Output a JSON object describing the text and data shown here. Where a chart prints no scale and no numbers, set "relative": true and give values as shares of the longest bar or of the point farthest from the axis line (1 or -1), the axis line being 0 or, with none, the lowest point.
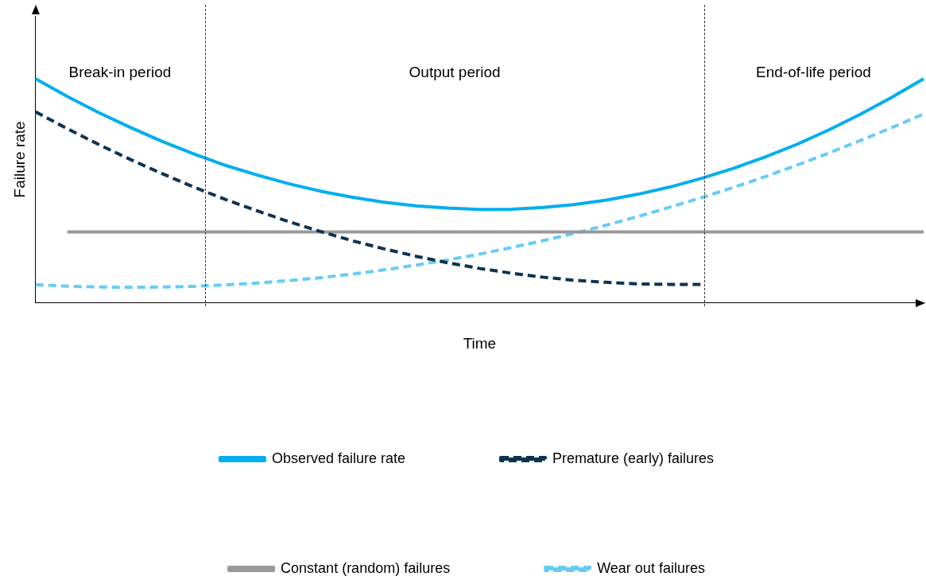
{
  "chart_data": {
    "type": "line",
    "relative": true,
    "xlabel": "Time",
    "ylabel": "Failure rate",
    "legend": "bottom",
    "grid": false,
    "marker": "none",
    "categories": [
      null,
      null,
      null,
      null,
      null,
      null,
      null,
      null,
      null,
      null,
      null,
      null,
      null,
      null,
      null,
      null,
      null,
      null,
      null,
      null,
      null,
      null,
      null,
      null,
      null,
      null,
      null,
      null,
      null
    ],
    "series": [
      {
        "name": "Observed failure rate",
        "color": "#00aeef",
        "line_style": "solid",
        "values": [
          1.0,
          0.921,
          0.848,
          0.782,
          0.72,
          0.664,
          0.613,
          0.57,
          0.531,
          0.498,
          0.471,
          0.449,
          0.433,
          0.423,
          0.417,
          0.418,
          0.426,
          0.439,
          0.459,
          0.485,
          0.517,
          0.556,
          0.6,
          0.651,
          0.707,
          0.771,
          0.841,
          0.917,
          1.0
        ]
      },
      {
        "name": "Premature (early) failures",
        "color": "#0d3353",
        "line_style": "dashed",
        "values": [
          0.852,
          0.777,
          0.706,
          0.639,
          0.576,
          0.516,
          0.461,
          0.41,
          0.362,
          0.318,
          0.277,
          0.241,
          0.208,
          0.179,
          0.154,
          0.133,
          0.115,
          0.101,
          0.092,
          0.085,
          0.083,
          0.083,
          null,
          null,
          null,
          null,
          null,
          null,
          null
        ]
      },
      {
        "name": "Constant (random) failures",
        "color": "#999999",
        "line_style": "solid",
        "values": [
          null,
          0.317,
          0.317,
          0.317,
          0.317,
          0.317,
          0.317,
          0.317,
          0.317,
          0.317,
          0.317,
          0.317,
          0.317,
          0.317,
          0.317,
          0.317,
          0.317,
          0.317,
          0.317,
          0.317,
          0.317,
          0.317,
          0.317,
          0.317,
          0.317,
          0.317,
          0.317,
          0.317,
          0.317
        ]
      },
      {
        "name": "Wear out failures",
        "color": "#66ccf5",
        "line_style": "dashed",
        "values": [
          0.082,
          0.075,
          0.071,
          0.07,
          0.071,
          0.074,
          0.081,
          0.089,
          0.1,
          0.113,
          0.129,
          0.148,
          0.169,
          0.192,
          0.218,
          0.247,
          0.278,
          0.311,
          0.347,
          0.386,
          0.427,
          0.47,
          0.515,
          0.563,
          0.614,
          0.668,
          0.724,
          0.782,
          0.843
        ]
      }
    ],
    "annotations": [
      "Break-in period",
      "Output period",
      "End-of-life period"
    ]
  }
}
